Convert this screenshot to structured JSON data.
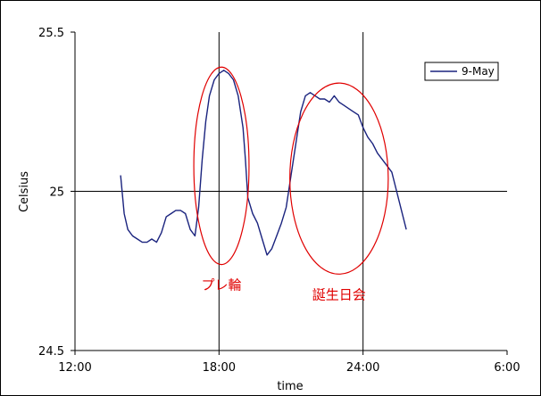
{
  "chart_data": {
    "type": "line",
    "title": "",
    "xlabel": "time",
    "ylabel": "Celsius",
    "xlim": [
      12,
      30
    ],
    "ylim": [
      24.5,
      25.5
    ],
    "x_ticks": [
      {
        "value": 12,
        "label": "12:00"
      },
      {
        "value": 18,
        "label": "18:00"
      },
      {
        "value": 24,
        "label": "24:00"
      },
      {
        "value": 30,
        "label": "6:00"
      }
    ],
    "y_ticks": [
      {
        "value": 24.5,
        "label": "24.5"
      },
      {
        "value": 25,
        "label": "25"
      },
      {
        "value": 25.5,
        "label": "25.5"
      }
    ],
    "vertical_gridlines": [
      18,
      24
    ],
    "horizontal_gridlines": [
      25
    ],
    "legend": {
      "position": "top-right",
      "entries": [
        "9-May"
      ]
    },
    "series_color": "#1a237e",
    "annotation_color": "#e00000",
    "series": [
      {
        "name": "9-May",
        "x": [
          13.9,
          14.05,
          14.2,
          14.4,
          14.6,
          14.8,
          15.0,
          15.2,
          15.4,
          15.6,
          15.8,
          16.0,
          16.2,
          16.4,
          16.6,
          16.8,
          17.0,
          17.15,
          17.3,
          17.45,
          17.6,
          17.8,
          18.0,
          18.2,
          18.4,
          18.6,
          18.8,
          19.0,
          19.1,
          19.2,
          19.4,
          19.6,
          19.8,
          20.0,
          20.2,
          20.4,
          20.6,
          20.8,
          21.0,
          21.2,
          21.4,
          21.6,
          21.8,
          22.0,
          22.2,
          22.4,
          22.6,
          22.8,
          23.0,
          23.2,
          23.4,
          23.6,
          23.8,
          24.0,
          24.2,
          24.4,
          24.6,
          24.8,
          25.0,
          25.2,
          25.4,
          25.6,
          25.8
        ],
        "y": [
          25.05,
          24.93,
          24.88,
          24.86,
          24.85,
          24.84,
          24.84,
          24.85,
          24.84,
          24.87,
          24.92,
          24.93,
          24.94,
          24.94,
          24.93,
          24.88,
          24.86,
          24.95,
          25.1,
          25.22,
          25.3,
          25.35,
          25.37,
          25.38,
          25.37,
          25.35,
          25.3,
          25.2,
          25.1,
          24.98,
          24.93,
          24.9,
          24.85,
          24.8,
          24.82,
          24.86,
          24.9,
          24.95,
          25.05,
          25.15,
          25.25,
          25.3,
          25.31,
          25.3,
          25.29,
          25.29,
          25.28,
          25.3,
          25.28,
          25.27,
          25.26,
          25.25,
          25.24,
          25.2,
          25.17,
          25.15,
          25.12,
          25.1,
          25.08,
          25.06,
          25.0,
          24.94,
          24.88
        ]
      }
    ],
    "annotations": [
      {
        "label": "プレ輪",
        "center_x": 18.1,
        "center_y": 25.08,
        "rx_hours": 1.15,
        "ry_celsius": 0.31
      },
      {
        "label": "誕生日会",
        "center_x": 23.0,
        "center_y": 25.04,
        "rx_hours": 2.05,
        "ry_celsius": 0.3
      }
    ]
  }
}
